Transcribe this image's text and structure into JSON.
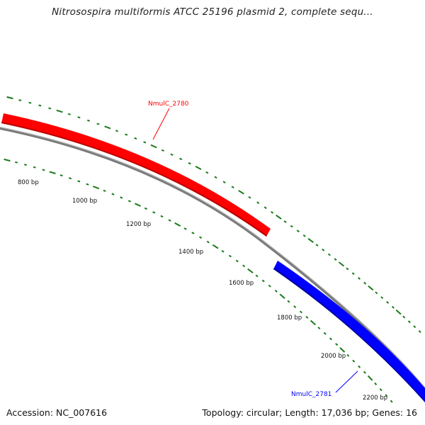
{
  "title": "Nitrosospira multiformis ATCC 25196 plasmid 2, complete sequ...",
  "footer": {
    "accession": "Accession: NC_007616",
    "summary": "Topology: circular; Length: 17,036 bp; Genes: 16"
  },
  "colors": {
    "forward_gene": "#ff0000",
    "reverse_gene": "#0000ff",
    "backbone": "#808080",
    "ticks": "#1a7a1a"
  },
  "genes": [
    {
      "label": "NmulC_2780",
      "strand": "forward",
      "color": "#ff0000"
    },
    {
      "label": "NmulC_2781",
      "strand": "reverse",
      "color": "#0000ff"
    }
  ],
  "ruler_labels": [
    "800 bp",
    "1000 bp",
    "1200 bp",
    "1400 bp",
    "1600 bp",
    "1800 bp",
    "2000 bp",
    "2200 bp"
  ]
}
